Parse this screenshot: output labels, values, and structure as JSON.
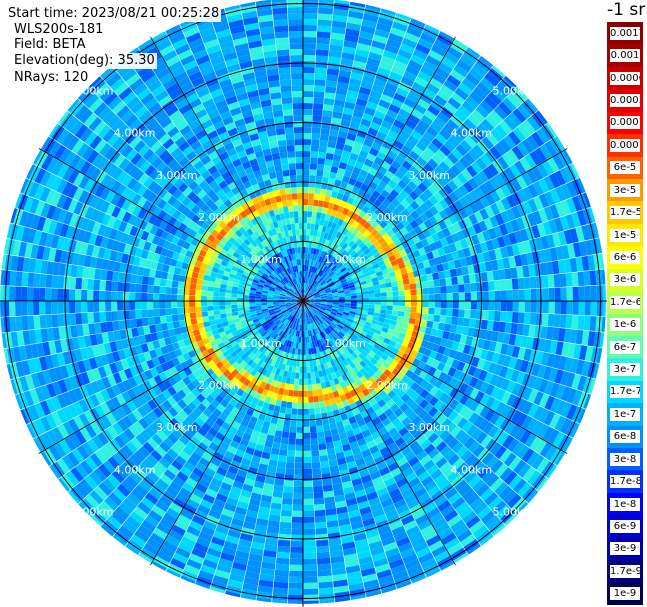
{
  "header": {
    "start_time": "Start time: 2023/08/21 00:25:28",
    "instrument": "WLS200s-181",
    "field": "Field: BETA",
    "elevation": "Elevation(deg): 35.30",
    "nrays": "NRays: 120"
  },
  "plot": {
    "type": "ppi-polar",
    "rays": 120,
    "ring_labels": [
      "1.00km",
      "2.00km",
      "3.00km",
      "4.00km",
      "5.00km"
    ],
    "ring_km": [
      1,
      2,
      3,
      4,
      5
    ],
    "max_range_km": 6.4,
    "ring_label_color": "#ffffff"
  },
  "colorbar": {
    "units": "-1 sr",
    "labels": [
      "0.0017",
      "0.001",
      "0.0006",
      "0.0003",
      "0.00017",
      "0.0001",
      "6e-5",
      "3e-5",
      "1.7e-5",
      "1e-5",
      "6e-6",
      "3e-6",
      "1.7e-6",
      "1e-6",
      "6e-7",
      "3e-7",
      "1.7e-7",
      "1e-7",
      "6e-8",
      "3e-8",
      "1.7e-8",
      "1e-8",
      "6e-9",
      "3e-9",
      "1.7e-9",
      "1e-9"
    ],
    "colors": [
      "#8b0000",
      "#a50000",
      "#c80000",
      "#e80000",
      "#ff0000",
      "#ff3000",
      "#ff6000",
      "#ff9a00",
      "#ffc800",
      "#ffe800",
      "#fdff00",
      "#d8ff20",
      "#b8ff50",
      "#90ff80",
      "#60ffb0",
      "#30f0e0",
      "#00d8ff",
      "#00b0ff",
      "#0090ff",
      "#0060ff",
      "#0030ff",
      "#0000ff",
      "#0000d0",
      "#0000a8",
      "#000080",
      "#000050"
    ]
  }
}
